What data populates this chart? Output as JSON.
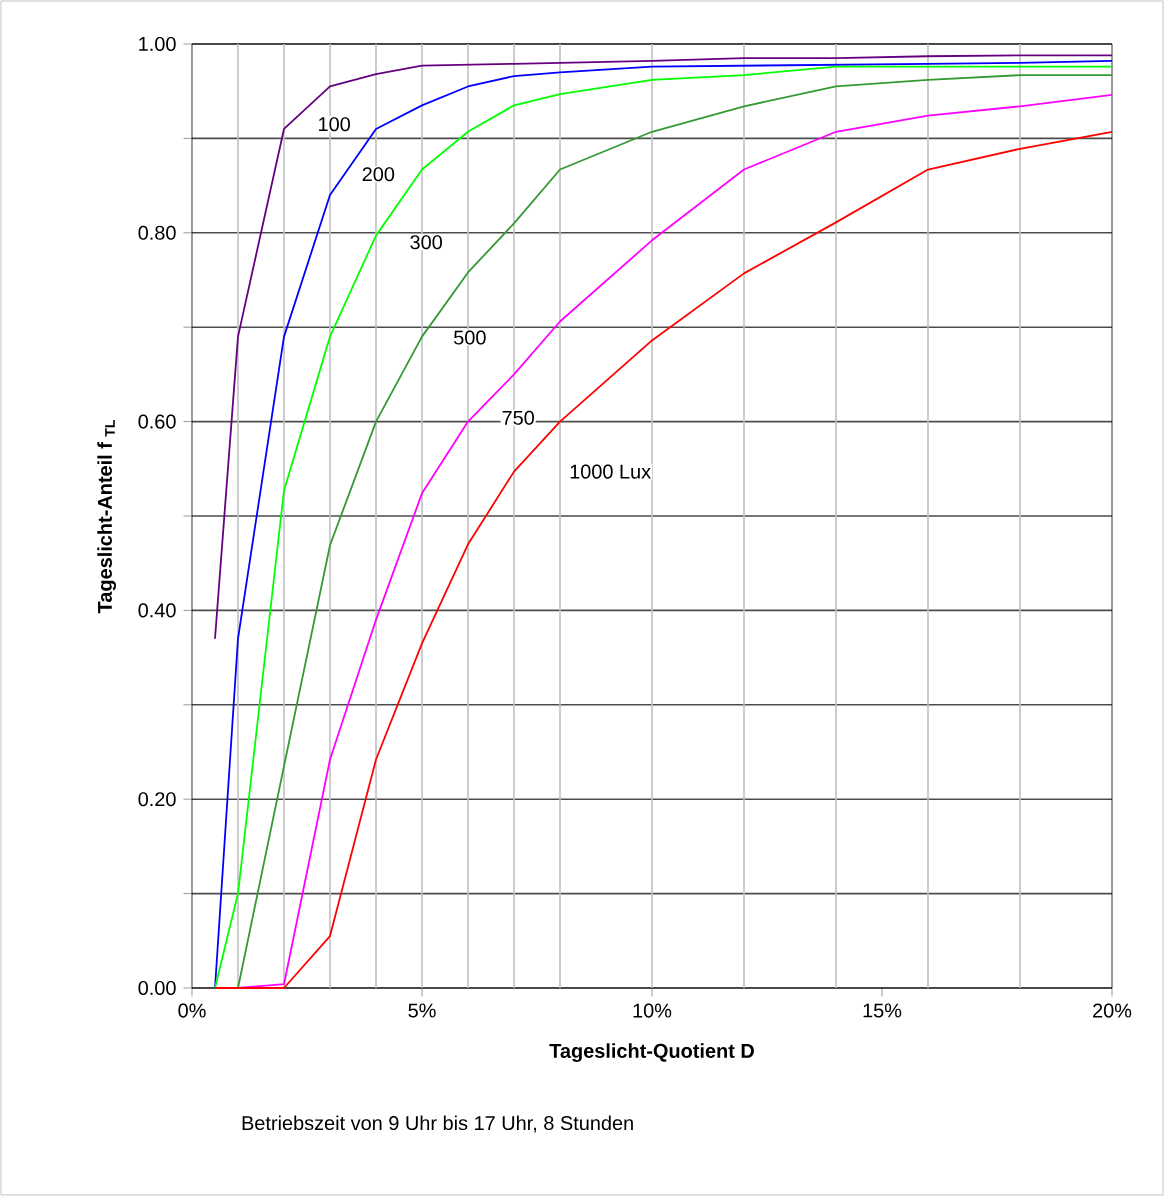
{
  "chart_data": {
    "type": "line",
    "xlabel": "Tageslicht-Quotient  D",
    "ylabel": "Tageslicht-Anteil  f $_{TL}$",
    "annotations": [
      "Betriebszeit von 9 Uhr  bis 17 Uhr,     8 Stunden"
    ],
    "x": [
      0.5,
      1,
      2,
      3,
      4,
      5,
      6,
      7,
      8,
      10,
      12,
      14,
      16,
      18,
      20
    ],
    "series": [
      {
        "name": "100",
        "color": "#660080",
        "values": [
          0.37,
          0.69,
          0.91,
          0.955,
          0.968,
          0.977,
          0.978,
          0.979,
          0.98,
          0.982,
          0.985,
          0.985,
          0.987,
          0.988,
          0.988
        ]
      },
      {
        "name": "200",
        "color": "#0000ff",
        "values": [
          0,
          0.37,
          0.69,
          0.84,
          0.91,
          0.935,
          0.955,
          0.966,
          0.97,
          0.976,
          0.977,
          0.978,
          0.979,
          0.98,
          0.982
        ]
      },
      {
        "name": "300",
        "color": "#00ff00",
        "values": [
          0,
          0.1,
          0.527,
          0.69,
          0.797,
          0.867,
          0.907,
          0.935,
          0.947,
          0.962,
          0.967,
          0.976,
          0.976,
          0.976,
          0.976
        ]
      },
      {
        "name": "500",
        "color": "#339933",
        "values": [
          null,
          0,
          0.235,
          0.469,
          0.6,
          0.69,
          0.758,
          0.81,
          0.867,
          0.907,
          0.934,
          0.955,
          0.962,
          0.967,
          0.967
        ]
      },
      {
        "name": "750",
        "color": "#ff00ff",
        "values": [
          0,
          0,
          0.004,
          0.242,
          0.39,
          0.524,
          0.6,
          0.65,
          0.706,
          0.792,
          0.867,
          0.907,
          0.924,
          0.934,
          0.946
        ]
      },
      {
        "name": "1000 Lux",
        "color": "#ff0000",
        "values": [
          0,
          0,
          0,
          0.055,
          0.242,
          0.365,
          0.47,
          0.547,
          0.6,
          0.686,
          0.757,
          0.811,
          0.867,
          0.889,
          0.907
        ]
      }
    ],
    "xlim": [
      0,
      20
    ],
    "ylim": [
      0,
      1
    ],
    "xticks": [
      {
        "value": 0,
        "label": "0%"
      },
      {
        "value": 5,
        "label": "5%"
      },
      {
        "value": 10,
        "label": "10%"
      },
      {
        "value": 15,
        "label": "15%"
      },
      {
        "value": 20,
        "label": "20%"
      }
    ],
    "yticks": [
      {
        "value": 0,
        "label": "0.00"
      },
      {
        "value": 0.1,
        "label": null
      },
      {
        "value": 0.2,
        "label": "0.20"
      },
      {
        "value": 0.3,
        "label": null
      },
      {
        "value": 0.4,
        "label": "0.40"
      },
      {
        "value": 0.5,
        "label": null
      },
      {
        "value": 0.6,
        "label": "0.60"
      },
      {
        "value": 0.7,
        "label": null
      },
      {
        "value": 0.8,
        "label": "0.80"
      },
      {
        "value": 0.9,
        "label": null
      },
      {
        "value": 1,
        "label": "1.00"
      }
    ],
    "grid": "y",
    "legend": false,
    "marker": "none",
    "line_style": "solid",
    "ref_lines": [
      {
        "axis": "x",
        "value": 1,
        "color": "#c0c0c0"
      },
      {
        "axis": "x",
        "value": 2,
        "color": "#c0c0c0"
      },
      {
        "axis": "x",
        "value": 3,
        "color": "#c0c0c0"
      },
      {
        "axis": "x",
        "value": 4,
        "color": "#c0c0c0"
      },
      {
        "axis": "x",
        "value": 5,
        "color": "#c0c0c0"
      },
      {
        "axis": "x",
        "value": 6,
        "color": "#c0c0c0"
      },
      {
        "axis": "x",
        "value": 7,
        "color": "#c0c0c0"
      },
      {
        "axis": "x",
        "value": 8,
        "color": "#c0c0c0"
      },
      {
        "axis": "x",
        "value": 10,
        "color": "#c0c0c0"
      },
      {
        "axis": "x",
        "value": 12,
        "color": "#c0c0c0"
      },
      {
        "axis": "x",
        "value": 14,
        "color": "#c0c0c0"
      },
      {
        "axis": "x",
        "value": 16,
        "color": "#c0c0c0"
      },
      {
        "axis": "x",
        "value": 18,
        "color": "#c0c0c0"
      }
    ]
  }
}
